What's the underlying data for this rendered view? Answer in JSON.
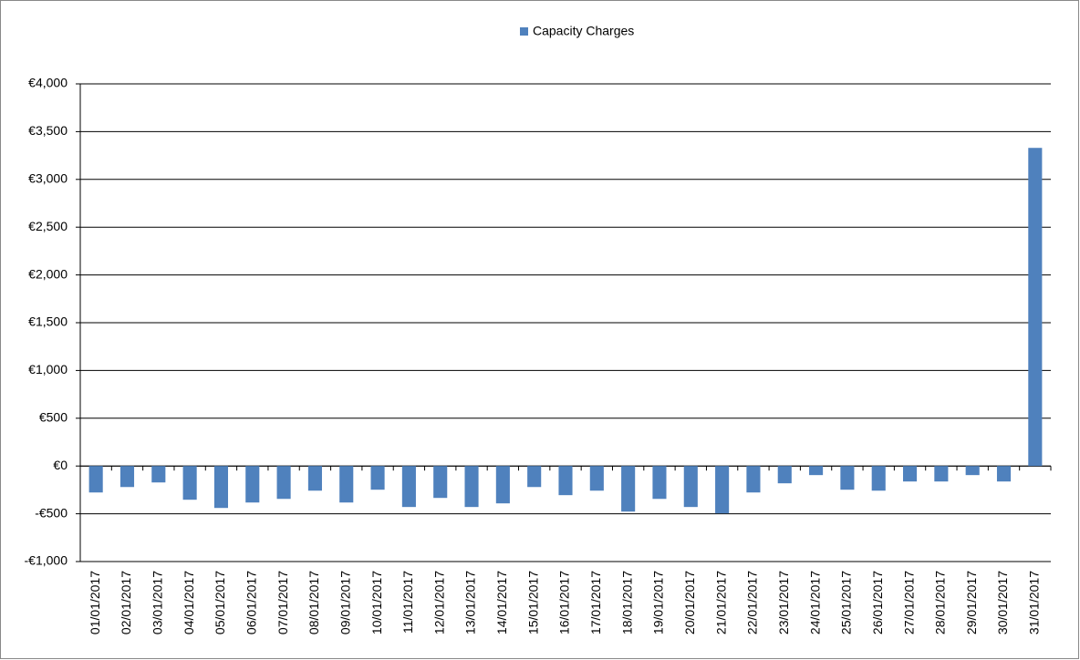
{
  "chart_data": {
    "type": "bar",
    "legend": "top",
    "series": [
      {
        "name": "Capacity Charges",
        "color": "#4f81bd",
        "values": [
          -277,
          -220,
          -172,
          -353,
          -439,
          -382,
          -344,
          -258,
          -382,
          -248,
          -429,
          -334,
          -429,
          -391,
          -220,
          -305,
          -258,
          -477,
          -344,
          -429,
          -496,
          -277,
          -181,
          -95,
          -248,
          -258,
          -162,
          -162,
          -95,
          -162,
          3330
        ]
      }
    ],
    "categories": [
      "01/01/2017",
      "02/01/2017",
      "03/01/2017",
      "04/01/2017",
      "05/01/2017",
      "06/01/2017",
      "07/01/2017",
      "08/01/2017",
      "09/01/2017",
      "10/01/2017",
      "11/01/2017",
      "12/01/2017",
      "13/01/2017",
      "14/01/2017",
      "15/01/2017",
      "16/01/2017",
      "17/01/2017",
      "18/01/2017",
      "19/01/2017",
      "20/01/2017",
      "21/01/2017",
      "22/01/2017",
      "23/01/2017",
      "24/01/2017",
      "25/01/2017",
      "26/01/2017",
      "27/01/2017",
      "28/01/2017",
      "29/01/2017",
      "30/01/2017",
      "31/01/2017"
    ],
    "ylim": [
      -1000,
      4000
    ],
    "yticks": [
      {
        "value": -1000,
        "label": "-€1,000"
      },
      {
        "value": -500,
        "label": "-€500"
      },
      {
        "value": 0,
        "label": "€0"
      },
      {
        "value": 500,
        "label": "€500"
      },
      {
        "value": 1000,
        "label": "€1,000"
      },
      {
        "value": 1500,
        "label": "€1,500"
      },
      {
        "value": 2000,
        "label": "€2,000"
      },
      {
        "value": 2500,
        "label": "€2,500"
      },
      {
        "value": 3000,
        "label": "€3,000"
      },
      {
        "value": 3500,
        "label": "€3,500"
      },
      {
        "value": 4000,
        "label": "€4,000"
      }
    ],
    "grid": true
  }
}
